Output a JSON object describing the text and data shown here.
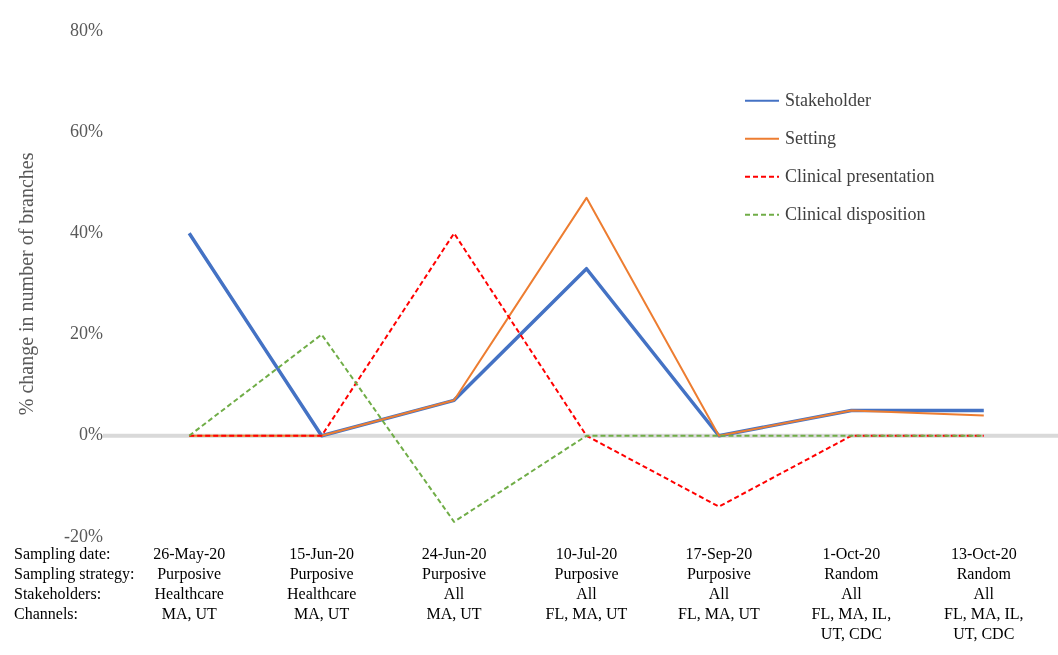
{
  "chart_data": {
    "type": "line",
    "ylabel": "% change in number of branches",
    "categories": [
      "26-May-20\nPurposive\nHealthcare\nMA, UT",
      "15-Jun-20\nPurposive\nHealthcare\nMA, UT",
      "24-Jun-20\nPurposive\nAll\nMA, UT",
      "10-Jul-20\nPurposive\nAll\nFL, MA, UT",
      "17-Sep-20\nPurposive\nAll\nFL, MA, UT",
      "1-Oct-20\nRandom\nAll\nFL, MA, IL,\nUT, CDC",
      "13-Oct-20\nRandom\nAll\nFL, MA, IL,\nUT, CDC"
    ],
    "series": [
      {
        "name": "Stakeholder",
        "color": "#4472c4",
        "line_style": "solid",
        "values": [
          40,
          0,
          7,
          33,
          0,
          5,
          5
        ]
      },
      {
        "name": "Setting",
        "color": "#ed7d31",
        "line_style": "solid",
        "values": [
          0,
          0,
          7,
          47,
          0,
          5,
          4
        ]
      },
      {
        "name": "Clinical presentation",
        "color": "#ff0000",
        "line_style": "dashed",
        "values": [
          0,
          0,
          40,
          0,
          -14,
          0,
          0
        ]
      },
      {
        "name": "Clinical disposition",
        "color": "#70ad47",
        "line_style": "dashed",
        "values": [
          0,
          20,
          -17,
          0,
          0,
          0,
          0
        ]
      }
    ],
    "ylim": [
      -20,
      80
    ],
    "yticks": [
      {
        "value": -20,
        "label": "-20%"
      },
      {
        "value": 0,
        "label": "0%"
      },
      {
        "value": 20,
        "label": "20%"
      },
      {
        "value": 40,
        "label": "40%"
      },
      {
        "value": 60,
        "label": "60%"
      },
      {
        "value": 80,
        "label": "80%"
      }
    ],
    "ref_lines": [
      {
        "axis": "y",
        "value": 0,
        "color": "#d9d9d9"
      }
    ],
    "annotations": [
      "Sampling date:",
      "Sampling strategy:",
      "Stakeholders:",
      "Channels:"
    ],
    "grid": false,
    "legend": "top right",
    "marker": "none"
  }
}
